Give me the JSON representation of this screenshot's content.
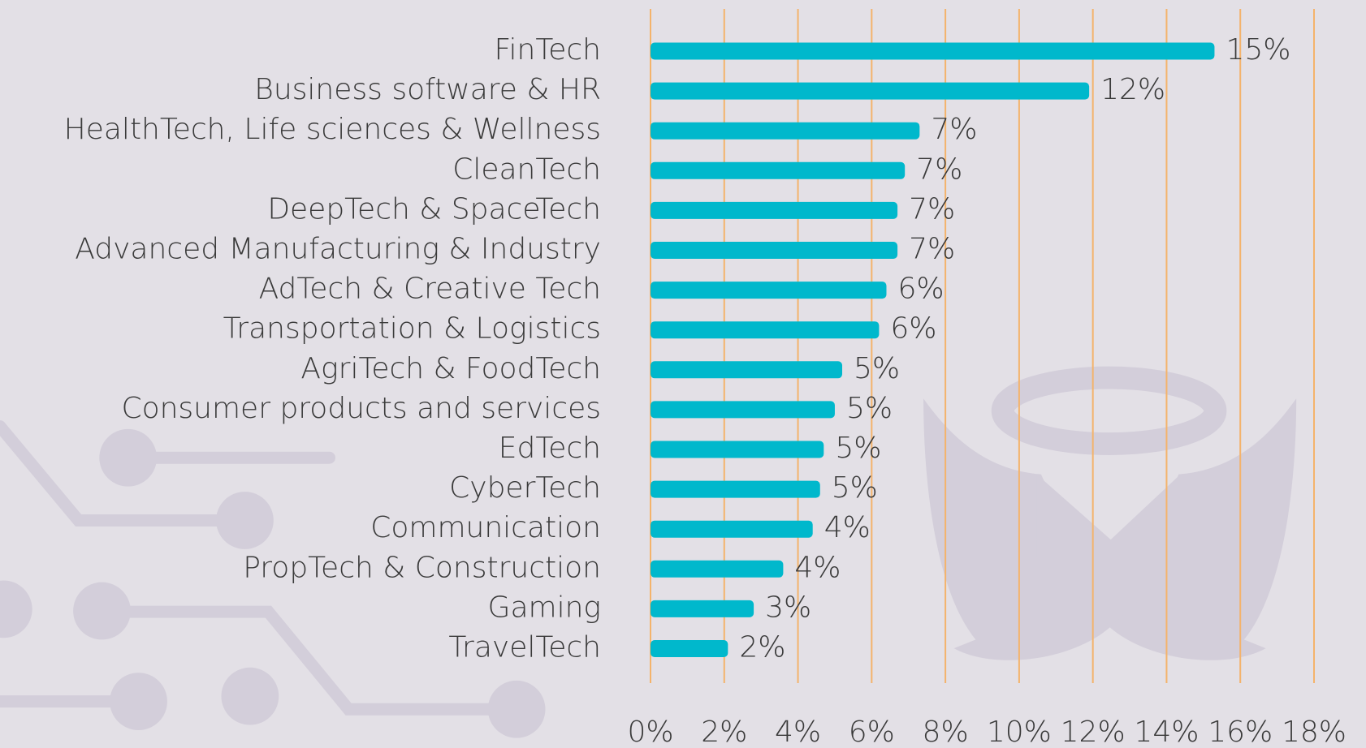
{
  "chart_data": {
    "type": "bar",
    "orientation": "horizontal",
    "categories": [
      "FinTech",
      "Business software & HR",
      "HealthTech, Life sciences & Wellness",
      "CleanTech",
      "DeepTech & SpaceTech",
      "Advanced Manufacturing & Industry",
      "AdTech & Creative Tech",
      "Transportation & Logistics",
      "AgriTech & FoodTech",
      "Consumer products and services",
      "EdTech",
      "CyberTech",
      "Communication",
      "PropTech & Construction",
      "Gaming",
      "TravelTech"
    ],
    "values": [
      15.3,
      11.9,
      7.3,
      6.9,
      6.7,
      6.7,
      6.4,
      6.2,
      5.2,
      5.0,
      4.7,
      4.6,
      4.4,
      3.6,
      2.8,
      2.1
    ],
    "value_labels": [
      "15%",
      "12%",
      "7%",
      "7%",
      "7%",
      "7%",
      "6%",
      "6%",
      "5%",
      "5%",
      "5%",
      "5%",
      "4%",
      "4%",
      "3%",
      "2%"
    ],
    "color": "#00b8cc",
    "xlim": [
      0,
      18
    ],
    "xticks": [
      {
        "value": 0,
        "label": "0%"
      },
      {
        "value": 2,
        "label": "2%"
      },
      {
        "value": 4,
        "label": "4%"
      },
      {
        "value": 6,
        "label": "6%"
      },
      {
        "value": 8,
        "label": "8%"
      },
      {
        "value": 10,
        "label": "10%"
      },
      {
        "value": 12,
        "label": "12%"
      },
      {
        "value": 14,
        "label": "14%"
      },
      {
        "value": 16,
        "label": "16%"
      },
      {
        "value": 18,
        "label": "18%"
      }
    ],
    "grid": true,
    "grid_color": "#f4b36b"
  }
}
